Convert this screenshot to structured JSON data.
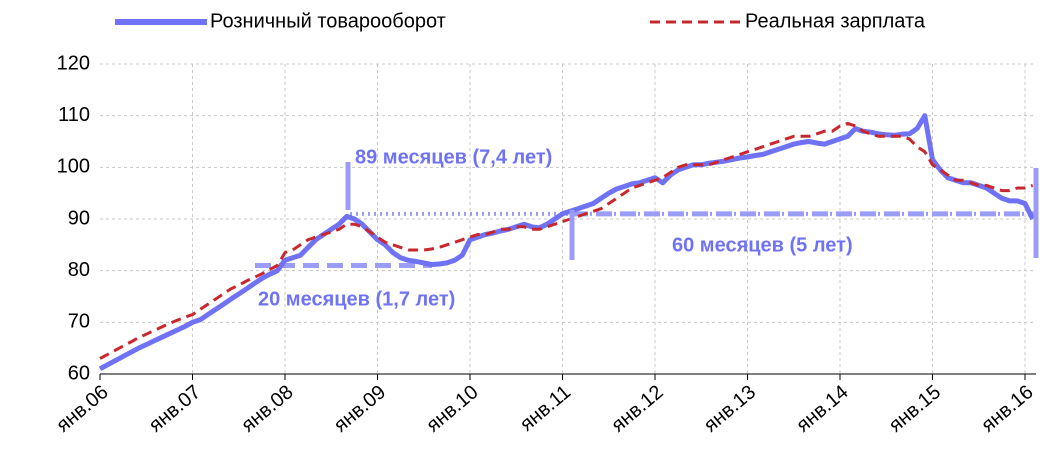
{
  "chart_data": {
    "type": "line",
    "categories": [
      "янв.06",
      null,
      null,
      null,
      null,
      null,
      null,
      null,
      null,
      null,
      null,
      null,
      "янв.07",
      null,
      null,
      null,
      null,
      null,
      null,
      null,
      null,
      null,
      null,
      null,
      "янв.08",
      null,
      null,
      null,
      null,
      null,
      null,
      null,
      null,
      null,
      null,
      null,
      "янв.09",
      null,
      null,
      null,
      null,
      null,
      null,
      null,
      null,
      null,
      null,
      null,
      "янв.10",
      null,
      null,
      null,
      null,
      null,
      null,
      null,
      null,
      null,
      null,
      null,
      "янв.11",
      null,
      null,
      null,
      null,
      null,
      null,
      null,
      null,
      null,
      null,
      null,
      "янв.12",
      null,
      null,
      null,
      null,
      null,
      null,
      null,
      null,
      null,
      null,
      null,
      "янв.13",
      null,
      null,
      null,
      null,
      null,
      null,
      null,
      null,
      null,
      null,
      null,
      "янв.14",
      null,
      null,
      null,
      null,
      null,
      null,
      null,
      null,
      null,
      null,
      null,
      "янв.15",
      null,
      null,
      null,
      null,
      null,
      null,
      null,
      null,
      null,
      null,
      null,
      "янв.16",
      null
    ],
    "series": [
      {
        "name": "Розничный товарооборот",
        "color": "#6f72f5",
        "style": "solid",
        "values": [
          61,
          61.8,
          62.6,
          63.4,
          64.2,
          65,
          65.7,
          66.4,
          67.1,
          67.8,
          68.5,
          69.2,
          70,
          70.5,
          71.5,
          72.5,
          73.5,
          74.5,
          75.5,
          76.5,
          77.5,
          78.5,
          79.3,
          80,
          82,
          82.5,
          83,
          84.5,
          86,
          87,
          88,
          89,
          90.5,
          90,
          89,
          87.5,
          86,
          85,
          83.5,
          82.5,
          82,
          81.8,
          81.5,
          81.2,
          81.3,
          81.5,
          82,
          83,
          86,
          86.5,
          87,
          87.3,
          87.7,
          88,
          88.5,
          89,
          88.5,
          88.3,
          89,
          90,
          91,
          91.5,
          92,
          92.5,
          93,
          94,
          95,
          95.8,
          96.3,
          96.8,
          97,
          97.5,
          98,
          97,
          98.5,
          99.5,
          100,
          100.5,
          100.5,
          100.8,
          101,
          101.2,
          101.5,
          101.8,
          102,
          102.3,
          102.5,
          103,
          103.5,
          104,
          104.5,
          104.8,
          105,
          104.7,
          104.5,
          105,
          105.5,
          106,
          107.5,
          107,
          106.8,
          106.5,
          106.3,
          106.2,
          106.4,
          106.5,
          107.5,
          110,
          101.5,
          99.5,
          98,
          97.5,
          97,
          97,
          96.5,
          96,
          95,
          94,
          93.5,
          93.5,
          93,
          90
        ]
      },
      {
        "name": "Реальная зарплата",
        "color": "#c8282d",
        "style": "dashed",
        "values": [
          63,
          63.8,
          64.6,
          65.4,
          66.2,
          67,
          67.7,
          68.4,
          69.1,
          69.8,
          70.4,
          71,
          71.5,
          72.5,
          73.5,
          74.5,
          75.5,
          76.5,
          77.2,
          78,
          78.7,
          79.4,
          80.2,
          81,
          83.5,
          84,
          85,
          86,
          86.5,
          87,
          87.5,
          88,
          89,
          89,
          88.5,
          87.5,
          86.5,
          85.5,
          85,
          84.5,
          84,
          84,
          84,
          84.2,
          84.5,
          85,
          85.5,
          86,
          86.5,
          87,
          87,
          87.5,
          88,
          88,
          88.5,
          88.5,
          88,
          88,
          88.5,
          89,
          89.5,
          90,
          90.5,
          91,
          91.5,
          92,
          93,
          94,
          95,
          96,
          96.5,
          97,
          97.5,
          98,
          99,
          100,
          100.5,
          100.5,
          100.5,
          100.5,
          101,
          101.5,
          102,
          102.5,
          103,
          103.5,
          104,
          104.5,
          105,
          105.5,
          106,
          106,
          106,
          106.5,
          107,
          107,
          108,
          108.5,
          108,
          107,
          106.5,
          106,
          106,
          106,
          106,
          105.5,
          104,
          103,
          100.5,
          99.5,
          98.5,
          97.5,
          97.5,
          97,
          96.5,
          96.5,
          96,
          95.5,
          95.5,
          96,
          96,
          96.5
        ]
      }
    ],
    "ylim": [
      60,
      120
    ],
    "yticks": [
      60,
      70,
      80,
      90,
      100,
      110,
      120
    ],
    "grid": true,
    "legend": "top",
    "reference_lines": [
      {
        "y": 81,
        "style": "dashed"
      },
      {
        "y": 91,
        "style": "dotted"
      },
      {
        "y": 91,
        "style": "dashed"
      }
    ],
    "annotations": [
      "89 месяцев (7,4 лет)",
      "20 месяцев (1,7 лет)",
      "60 месяцев (5 лет)"
    ]
  }
}
